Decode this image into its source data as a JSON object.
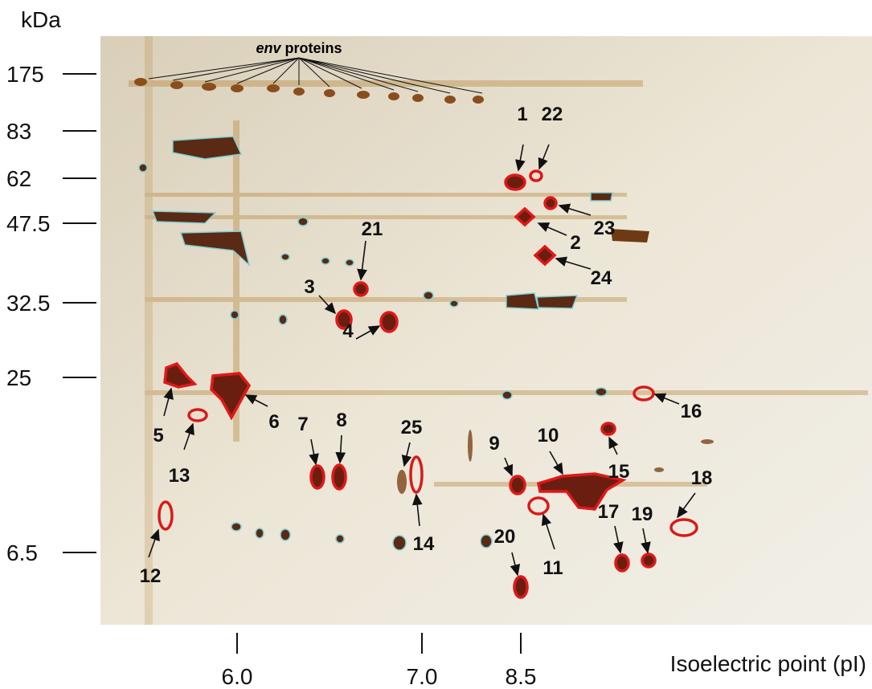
{
  "y_axis": {
    "unit": "kDa",
    "ticks": [
      "175",
      "83",
      "62",
      "47.5",
      "32.5",
      "25",
      "6.5"
    ]
  },
  "x_axis": {
    "title": "Isoelectric point (pI)",
    "ticks": [
      "6.0",
      "7.0",
      "8.5"
    ]
  },
  "annotation": {
    "italic": "env",
    "text": "proteins"
  },
  "spots": [
    "1",
    "2",
    "3",
    "4",
    "5",
    "6",
    "7",
    "8",
    "9",
    "10",
    "11",
    "12",
    "13",
    "14",
    "15",
    "16",
    "17",
    "18",
    "19",
    "20",
    "21",
    "22",
    "23",
    "24",
    "25"
  ]
}
